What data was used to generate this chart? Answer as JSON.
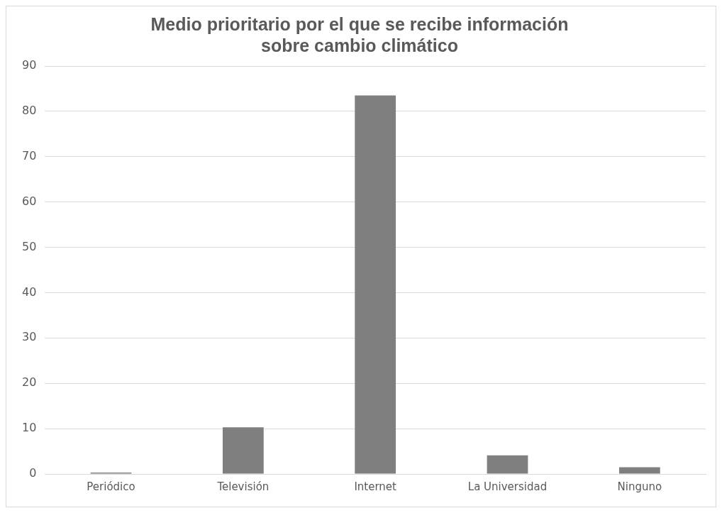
{
  "chart_data": {
    "type": "bar",
    "title": "Medio prioritario por el que se recibe información sobre cambio climático",
    "categories": [
      "Periódico",
      "Televisión",
      "Internet",
      "La Universidad",
      "Ninguno"
    ],
    "values": [
      0.3,
      10.3,
      83.5,
      4.1,
      1.5
    ],
    "color": "#7f7f7f",
    "ylim": [
      0,
      90
    ],
    "yticks": [
      0,
      10,
      20,
      30,
      40,
      50,
      60,
      70,
      80,
      90
    ],
    "grid": "y",
    "legend": false
  }
}
